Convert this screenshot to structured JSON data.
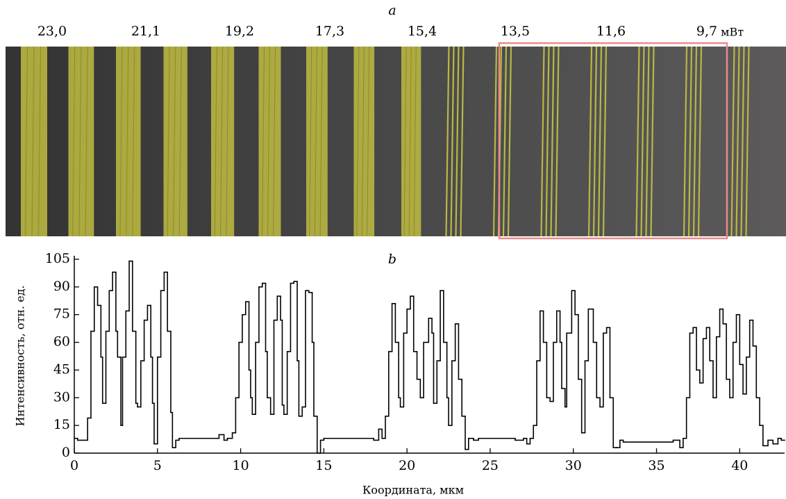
{
  "panel_a": {
    "label": "a",
    "power_labels": [
      "23,0",
      "21,1",
      "19,2",
      "17,3",
      "15,4",
      "13,5",
      "11,6",
      "9,7"
    ],
    "unit": "мВт"
  },
  "chart_data": {
    "type": "line",
    "step": "post",
    "label": "b",
    "x_label": "Координата, мкм",
    "y_label": "Интенсивность, отн. ед.",
    "xlim": [
      0,
      42.7
    ],
    "ylim": [
      0,
      105
    ],
    "xticks": [
      0,
      5,
      10,
      15,
      20,
      25,
      30,
      35,
      40
    ],
    "yticks": [
      0,
      15,
      30,
      45,
      60,
      75,
      90,
      105
    ],
    "x": [
      0,
      0.2,
      0.8,
      1.0,
      1.2,
      1.4,
      1.6,
      1.7,
      1.9,
      2.1,
      2.3,
      2.5,
      2.6,
      2.8,
      2.9,
      3.1,
      3.3,
      3.5,
      3.7,
      3.8,
      4.0,
      4.2,
      4.4,
      4.6,
      4.7,
      4.8,
      5.0,
      5.2,
      5.4,
      5.6,
      5.8,
      5.9,
      6.1,
      6.3,
      8.5,
      8.7,
      9.0,
      9.2,
      9.5,
      9.7,
      9.9,
      10.1,
      10.3,
      10.5,
      10.6,
      10.7,
      10.9,
      11.1,
      11.3,
      11.5,
      11.6,
      11.8,
      12.0,
      12.2,
      12.4,
      12.5,
      12.6,
      12.8,
      13.0,
      13.2,
      13.4,
      13.5,
      13.7,
      13.9,
      14.1,
      14.3,
      14.4,
      14.6,
      14.8,
      15.0,
      18.0,
      18.3,
      18.5,
      18.7,
      18.9,
      19.1,
      19.3,
      19.5,
      19.6,
      19.8,
      20.0,
      20.2,
      20.4,
      20.6,
      20.8,
      21.0,
      21.3,
      21.5,
      21.6,
      21.8,
      22.0,
      22.2,
      22.4,
      22.5,
      22.7,
      22.9,
      23.1,
      23.3,
      23.5,
      23.7,
      24.0,
      24.3,
      26.5,
      27.0,
      27.2,
      27.4,
      27.6,
      27.8,
      28.0,
      28.2,
      28.4,
      28.6,
      28.8,
      29.0,
      29.2,
      29.3,
      29.5,
      29.6,
      29.9,
      30.1,
      30.3,
      30.5,
      30.7,
      30.9,
      31.2,
      31.4,
      31.6,
      31.8,
      32.0,
      32.2,
      32.4,
      32.6,
      32.8,
      33.0,
      36.0,
      36.4,
      36.6,
      36.8,
      37.0,
      37.2,
      37.4,
      37.6,
      37.8,
      38.0,
      38.2,
      38.4,
      38.6,
      38.8,
      39.0,
      39.2,
      39.4,
      39.6,
      39.8,
      40.0,
      40.2,
      40.4,
      40.6,
      40.8,
      41.0,
      41.2,
      41.4,
      41.7,
      42.0,
      42.3,
      42.5
    ],
    "color": "#000000",
    "values": [
      8,
      7,
      19,
      66,
      90,
      80,
      52,
      27,
      66,
      88,
      98,
      66,
      52,
      15,
      52,
      77,
      104,
      66,
      27,
      25,
      50,
      72,
      80,
      52,
      27,
      5,
      52,
      88,
      98,
      66,
      22,
      3,
      7,
      8,
      8,
      10,
      7,
      8,
      11,
      30,
      60,
      75,
      82,
      45,
      30,
      21,
      60,
      90,
      92,
      55,
      30,
      21,
      72,
      85,
      72,
      26,
      21,
      55,
      92,
      93,
      50,
      20,
      25,
      88,
      87,
      60,
      20,
      0,
      7,
      8,
      7,
      13,
      8,
      20,
      55,
      81,
      60,
      30,
      25,
      65,
      78,
      85,
      55,
      40,
      30,
      60,
      73,
      65,
      27,
      50,
      88,
      60,
      30,
      15,
      50,
      70,
      40,
      20,
      2,
      8,
      7,
      8,
      7,
      8,
      5,
      8,
      15,
      50,
      77,
      60,
      30,
      28,
      60,
      77,
      60,
      35,
      25,
      65,
      88,
      75,
      40,
      11,
      50,
      78,
      60,
      30,
      25,
      65,
      68,
      30,
      3,
      3,
      7,
      6,
      7,
      3,
      8,
      30,
      65,
      68,
      45,
      38,
      62,
      68,
      50,
      30,
      63,
      78,
      70,
      40,
      30,
      60,
      75,
      48,
      32,
      52,
      72,
      58,
      30,
      15,
      4,
      7,
      5,
      8,
      7
    ]
  }
}
